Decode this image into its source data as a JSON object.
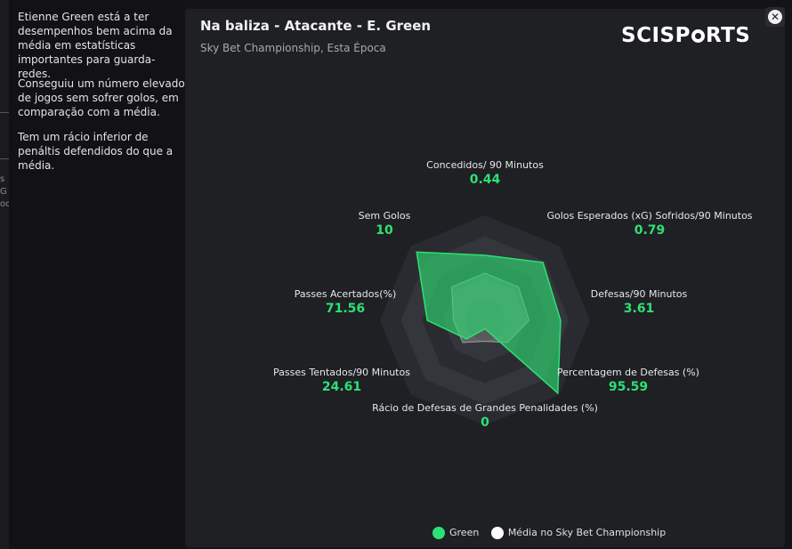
{
  "background_app": {
    "marks": [
      "s",
      "G",
      "oo"
    ]
  },
  "insights": [
    "Etienne Green está a ter desempenhos bem acima da média em estatísticas importantes para guarda-redes.",
    "Conseguiu um número elevado de jogos sem sofrer golos, em comparação com a média.",
    "Tem um rácio inferior de penáltis defendidos do que a média."
  ],
  "card": {
    "title": "Na baliza - Atacante - E. Green",
    "subtitle": "Sky Bet Championship, Esta Época",
    "logo": {
      "before": "SCISP",
      "after": "RTS"
    },
    "close_glyph": "✕"
  },
  "colors": {
    "player": "#2de075",
    "average": "#ffffff",
    "ring_dark": "#2a2b30",
    "ring_light": "#35363b"
  },
  "chart_data": {
    "type": "radar",
    "title": "Na baliza - Atacante - E. Green",
    "axes": [
      {
        "label": "Concedidos/ 90 Minutos",
        "value": "0.44"
      },
      {
        "label": "Golos Esperados (xG) Sofridos/90 Minutos",
        "value": "0.79"
      },
      {
        "label": "Defesas/90 Minutos",
        "value": "3.61"
      },
      {
        "label": "Percentagem de Defesas (%)",
        "value": "95.59"
      },
      {
        "label": "Rácio de Defesas de Grandes Penalidades (%)",
        "value": "0"
      },
      {
        "label": "Passes Tentados/90 Minutos",
        "value": "24.61"
      },
      {
        "label": "Passes Acertados(%)",
        "value": "71.56"
      },
      {
        "label": "Sem Golos",
        "value": "10"
      }
    ],
    "series": [
      {
        "name": "Green",
        "percentile": [
          0.62,
          0.78,
          0.72,
          0.98,
          0.08,
          0.25,
          0.55,
          0.92
        ]
      },
      {
        "name": "Média no Sky Bet Championship",
        "percentile": [
          0.45,
          0.45,
          0.42,
          0.3,
          0.2,
          0.3,
          0.3,
          0.45
        ]
      }
    ],
    "legend_position": "bottom"
  }
}
